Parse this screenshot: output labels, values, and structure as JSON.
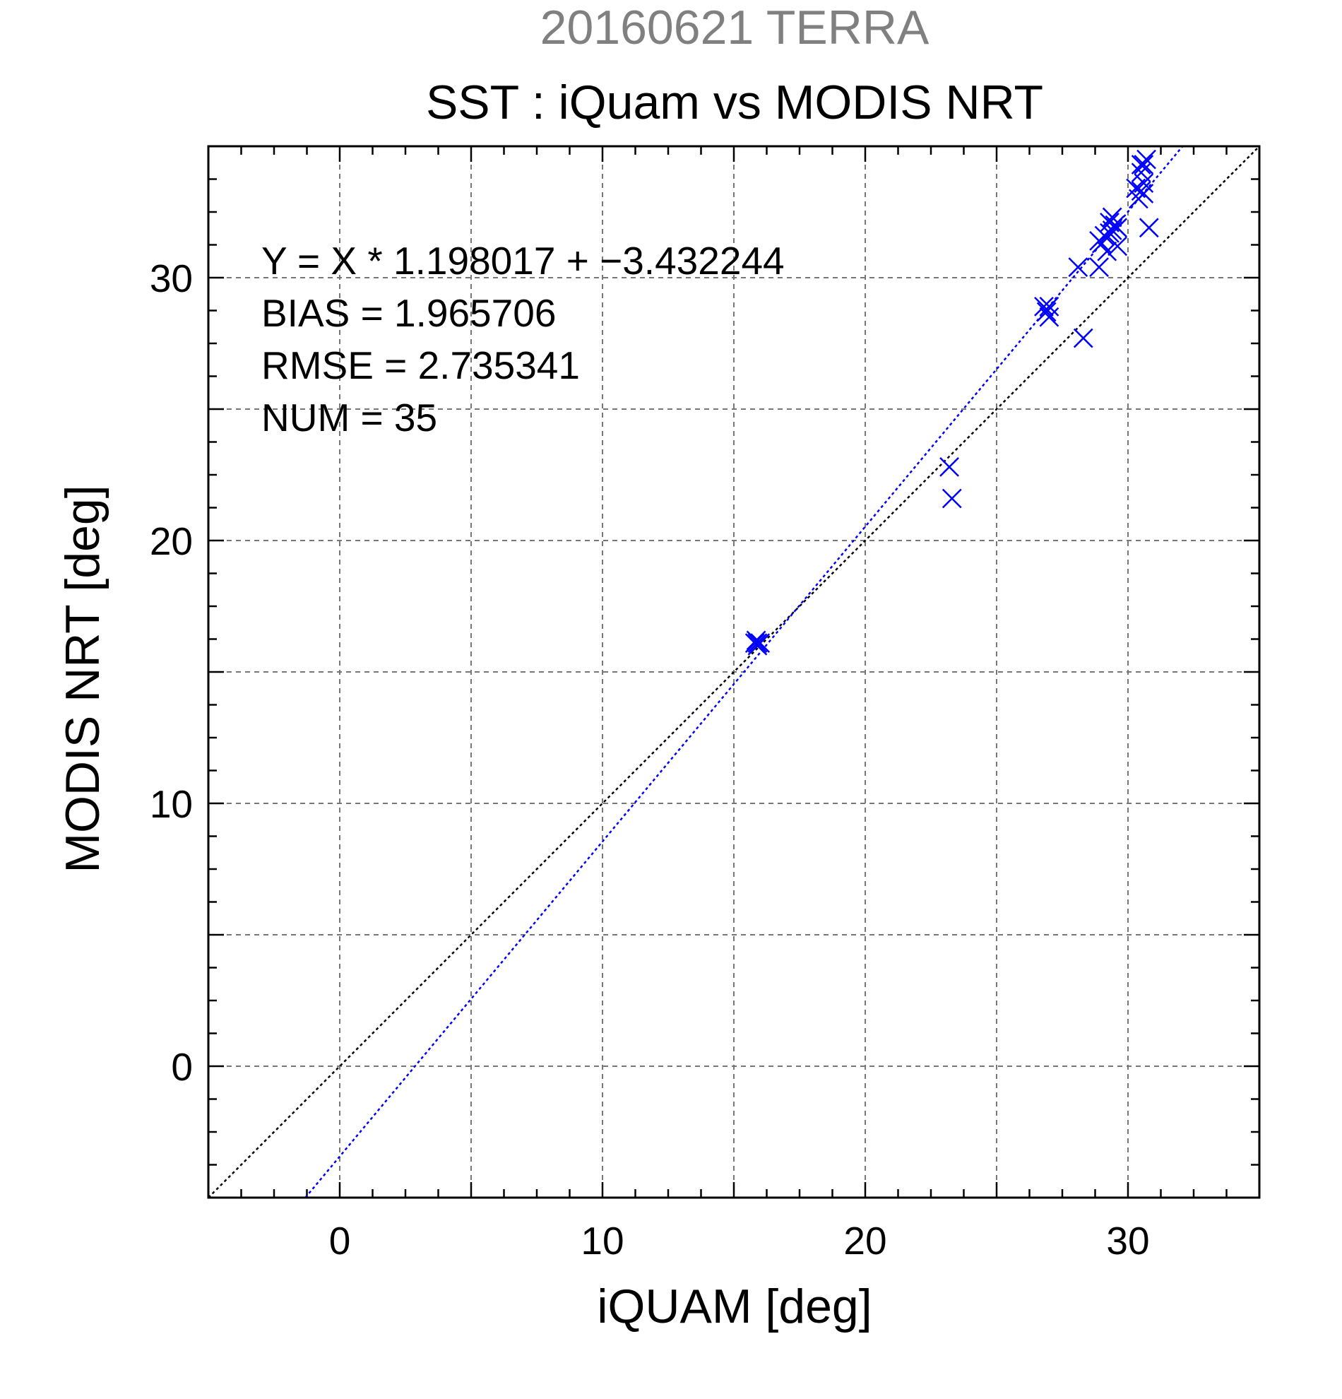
{
  "chart_data": {
    "type": "scatter",
    "suptitle": "20160621 TERRA",
    "title": "SST : iQuam vs MODIS NRT",
    "xlabel": "iQUAM [deg]",
    "ylabel": "MODIS NRT [deg]",
    "xlim": [
      -5,
      35
    ],
    "ylim": [
      -5,
      35
    ],
    "xticks": [
      0,
      10,
      20,
      30
    ],
    "yticks": [
      0,
      10,
      20,
      30
    ],
    "grid": true,
    "grid_step": 5,
    "colors": {
      "points": "#0000ff",
      "fit_line": "#0000ff",
      "identity_line": "#000000",
      "suptitle": "#808080"
    },
    "annotations": [
      "Y = X * 1.198017 + −3.432244",
      "BIAS = 1.965706",
      "RMSE = 2.735341",
      "NUM = 35"
    ],
    "fit": {
      "slope": 1.198017,
      "intercept": -3.432244
    },
    "series": [
      {
        "marker": "x",
        "points": [
          [
            15.8,
            16.1
          ],
          [
            15.9,
            16.1
          ],
          [
            15.9,
            16.0
          ],
          [
            16.0,
            16.1
          ],
          [
            15.85,
            16.2
          ],
          [
            23.2,
            22.8
          ],
          [
            23.3,
            21.6
          ],
          [
            26.8,
            28.9
          ],
          [
            27.0,
            28.9
          ],
          [
            26.9,
            28.7
          ],
          [
            27.0,
            28.5
          ],
          [
            28.1,
            30.4
          ],
          [
            28.3,
            27.7
          ],
          [
            28.9,
            31.4
          ],
          [
            28.9,
            30.4
          ],
          [
            29.0,
            31.3
          ],
          [
            29.1,
            31.6
          ],
          [
            29.2,
            31.0
          ],
          [
            29.3,
            31.7
          ],
          [
            29.3,
            32.1
          ],
          [
            29.4,
            32.3
          ],
          [
            29.4,
            31.8
          ],
          [
            29.5,
            32.0
          ],
          [
            29.6,
            31.2
          ],
          [
            29.6,
            31.9
          ],
          [
            30.3,
            33.4
          ],
          [
            30.4,
            33.0
          ],
          [
            30.5,
            33.3
          ],
          [
            30.5,
            34.0
          ],
          [
            30.5,
            34.3
          ],
          [
            30.6,
            33.6
          ],
          [
            30.6,
            34.3
          ],
          [
            30.7,
            34.5
          ],
          [
            30.8,
            31.9
          ],
          [
            30.6,
            33.2
          ]
        ]
      }
    ]
  }
}
